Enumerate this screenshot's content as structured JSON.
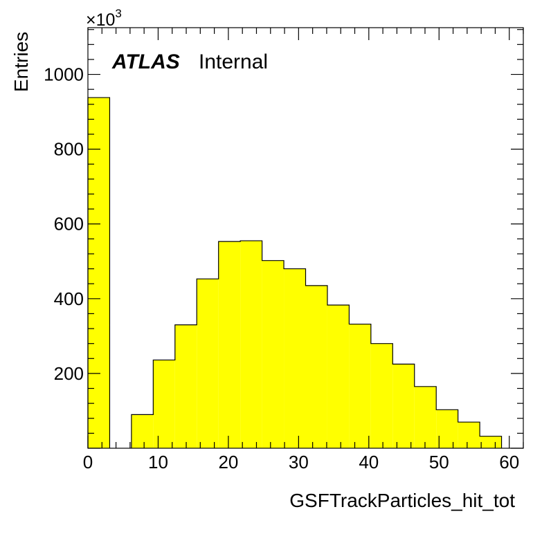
{
  "chart_data": {
    "type": "bar",
    "xlabel": "GSFTrackParticles_hit_tot",
    "ylabel": "Entries",
    "y_multiplier_base": "×10",
    "y_multiplier_exp": "3",
    "atlas_label": "ATLAS",
    "atlas_sublabel": "Internal",
    "xlim": [
      0,
      62
    ],
    "ylim": [
      0,
      1125
    ],
    "x_ticks": [
      0,
      10,
      20,
      30,
      40,
      50,
      60
    ],
    "x_tick_labels": [
      "0",
      "10",
      "20",
      "30",
      "40",
      "50",
      "60"
    ],
    "y_ticks": [
      200,
      400,
      600,
      800,
      1000
    ],
    "y_tick_labels": [
      "200",
      "400",
      "600",
      "800",
      "1000"
    ],
    "bin_width": 3.1,
    "bin_low_edges": [
      0,
      3.1,
      6.2,
      9.3,
      12.4,
      15.5,
      18.6,
      21.7,
      24.8,
      27.9,
      31.0,
      34.1,
      37.2,
      40.3,
      43.4,
      46.5,
      49.6,
      52.7,
      55.8,
      58.9
    ],
    "values": [
      938,
      0,
      90,
      236,
      330,
      453,
      553,
      555,
      502,
      480,
      435,
      383,
      332,
      280,
      225,
      165,
      103,
      70,
      32,
      0
    ],
    "fill_color": "#ffff00",
    "line_color": "#000000",
    "grid": false
  }
}
